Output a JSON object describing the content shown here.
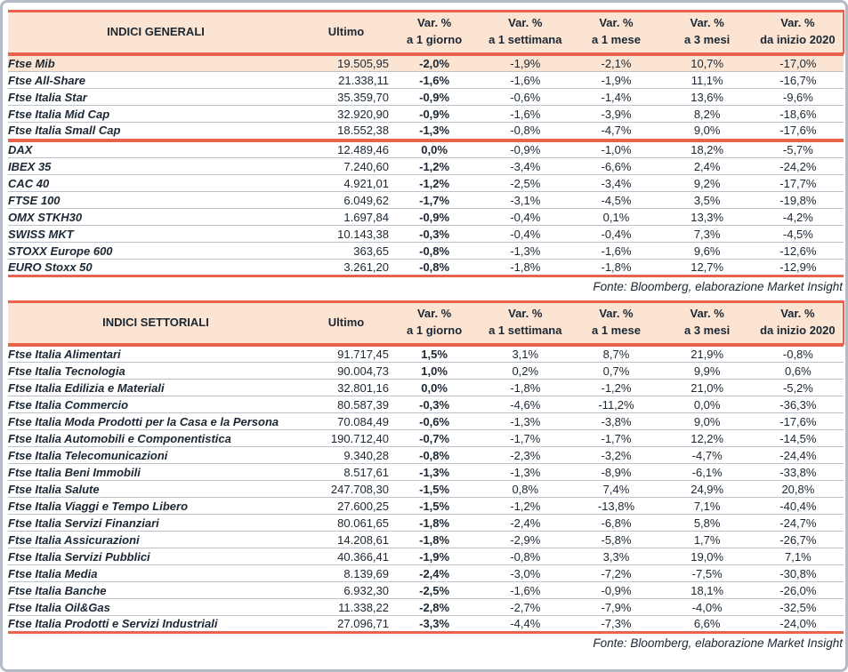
{
  "page": {
    "background": "#ffffff",
    "border_color": "#b4bac6"
  },
  "colors": {
    "accent_red": "#e8624c",
    "header_bg": "#fce4d2",
    "highlight_row_bg": "#fce4d2",
    "row_divider": "#bcc2cc",
    "text": "#1b2733"
  },
  "columns": {
    "ultimo_label": "Ultimo",
    "var_label": "Var. %",
    "var_sublabels": [
      "a 1 giorno",
      "a 1 settimana",
      "a 1 mese",
      "a 3 mesi",
      "da inizio 2020"
    ]
  },
  "tables": [
    {
      "title": "INDICI GENERALI",
      "footer": "Fonte: Bloomberg, elaborazione Market Insight",
      "highlight_rows": [
        0
      ],
      "separator_after": [
        4
      ],
      "rows": [
        [
          "Ftse Mib",
          "19.505,95",
          "-2,0%",
          "-1,9%",
          "-2,1%",
          "10,7%",
          "-17,0%"
        ],
        [
          "Ftse All-Share",
          "21.338,11",
          "-1,6%",
          "-1,6%",
          "-1,9%",
          "11,1%",
          "-16,7%"
        ],
        [
          "Ftse Italia Star",
          "35.359,70",
          "-0,9%",
          "-0,6%",
          "-1,4%",
          "13,6%",
          "-9,6%"
        ],
        [
          "Ftse Italia Mid Cap",
          "32.920,90",
          "-0,9%",
          "-1,6%",
          "-3,9%",
          "8,2%",
          "-18,6%"
        ],
        [
          "Ftse Italia Small Cap",
          "18.552,38",
          "-1,3%",
          "-0,8%",
          "-4,7%",
          "9,0%",
          "-17,6%"
        ],
        [
          "DAX",
          "12.489,46",
          "0,0%",
          "-0,9%",
          "-1,0%",
          "18,2%",
          "-5,7%"
        ],
        [
          "IBEX 35",
          "7.240,60",
          "-1,2%",
          "-3,4%",
          "-6,6%",
          "2,4%",
          "-24,2%"
        ],
        [
          "CAC 40",
          "4.921,01",
          "-1,2%",
          "-2,5%",
          "-3,4%",
          "9,2%",
          "-17,7%"
        ],
        [
          "FTSE 100",
          "6.049,62",
          "-1,7%",
          "-3,1%",
          "-4,5%",
          "3,5%",
          "-19,8%"
        ],
        [
          "OMX STKH30",
          "1.697,84",
          "-0,9%",
          "-0,4%",
          "0,1%",
          "13,3%",
          "-4,2%"
        ],
        [
          "SWISS MKT",
          "10.143,38",
          "-0,3%",
          "-0,4%",
          "-0,4%",
          "7,3%",
          "-4,5%"
        ],
        [
          "STOXX Europe 600",
          "363,65",
          "-0,8%",
          "-1,3%",
          "-1,6%",
          "9,6%",
          "-12,6%"
        ],
        [
          "EURO Stoxx 50",
          "3.261,20",
          "-0,8%",
          "-1,8%",
          "-1,8%",
          "12,7%",
          "-12,9%"
        ]
      ]
    },
    {
      "title": "INDICI SETTORIALI",
      "footer": "Fonte: Bloomberg, elaborazione Market Insight",
      "highlight_rows": [],
      "separator_after": [],
      "rows": [
        [
          "Ftse Italia Alimentari",
          "91.717,45",
          "1,5%",
          "3,1%",
          "8,7%",
          "21,9%",
          "-0,8%"
        ],
        [
          "Ftse Italia Tecnologia",
          "90.004,73",
          "1,0%",
          "0,2%",
          "0,7%",
          "9,9%",
          "0,6%"
        ],
        [
          "Ftse Italia Edilizia e Materiali",
          "32.801,16",
          "0,0%",
          "-1,8%",
          "-1,2%",
          "21,0%",
          "-5,2%"
        ],
        [
          "Ftse Italia Commercio",
          "80.587,39",
          "-0,3%",
          "-4,6%",
          "-11,2%",
          "0,0%",
          "-36,3%"
        ],
        [
          "Ftse Italia Moda Prodotti per la Casa e la Persona",
          "70.084,49",
          "-0,6%",
          "-1,3%",
          "-3,8%",
          "9,0%",
          "-17,6%"
        ],
        [
          "Ftse Italia Automobili e Componentistica",
          "190.712,40",
          "-0,7%",
          "-1,7%",
          "-1,7%",
          "12,2%",
          "-14,5%"
        ],
        [
          "Ftse Italia Telecomunicazioni",
          "9.340,28",
          "-0,8%",
          "-2,3%",
          "-3,2%",
          "-4,7%",
          "-24,4%"
        ],
        [
          "Ftse Italia Beni Immobili",
          "8.517,61",
          "-1,3%",
          "-1,3%",
          "-8,9%",
          "-6,1%",
          "-33,8%"
        ],
        [
          "Ftse Italia Salute",
          "247.708,30",
          "-1,5%",
          "0,8%",
          "7,4%",
          "24,9%",
          "20,8%"
        ],
        [
          "Ftse Italia Viaggi e Tempo Libero",
          "27.600,25",
          "-1,5%",
          "-1,2%",
          "-13,8%",
          "7,1%",
          "-40,4%"
        ],
        [
          "Ftse Italia Servizi Finanziari",
          "80.061,65",
          "-1,8%",
          "-2,4%",
          "-6,8%",
          "5,8%",
          "-24,7%"
        ],
        [
          "Ftse Italia Assicurazioni",
          "14.208,61",
          "-1,8%",
          "-2,9%",
          "-5,8%",
          "1,7%",
          "-26,7%"
        ],
        [
          "Ftse Italia Servizi Pubblici",
          "40.366,41",
          "-1,9%",
          "-0,8%",
          "3,3%",
          "19,0%",
          "7,1%"
        ],
        [
          "Ftse Italia Media",
          "8.139,69",
          "-2,4%",
          "-3,0%",
          "-7,2%",
          "-7,5%",
          "-30,8%"
        ],
        [
          "Ftse Italia Banche",
          "6.932,30",
          "-2,5%",
          "-1,6%",
          "-0,9%",
          "18,1%",
          "-26,0%"
        ],
        [
          "Ftse Italia Oil&Gas",
          "11.338,22",
          "-2,8%",
          "-2,7%",
          "-7,9%",
          "-4,0%",
          "-32,5%"
        ],
        [
          "Ftse Italia Prodotti e Servizi Industriali",
          "27.096,71",
          "-3,3%",
          "-4,4%",
          "-7,3%",
          "6,6%",
          "-24,0%"
        ]
      ]
    }
  ]
}
